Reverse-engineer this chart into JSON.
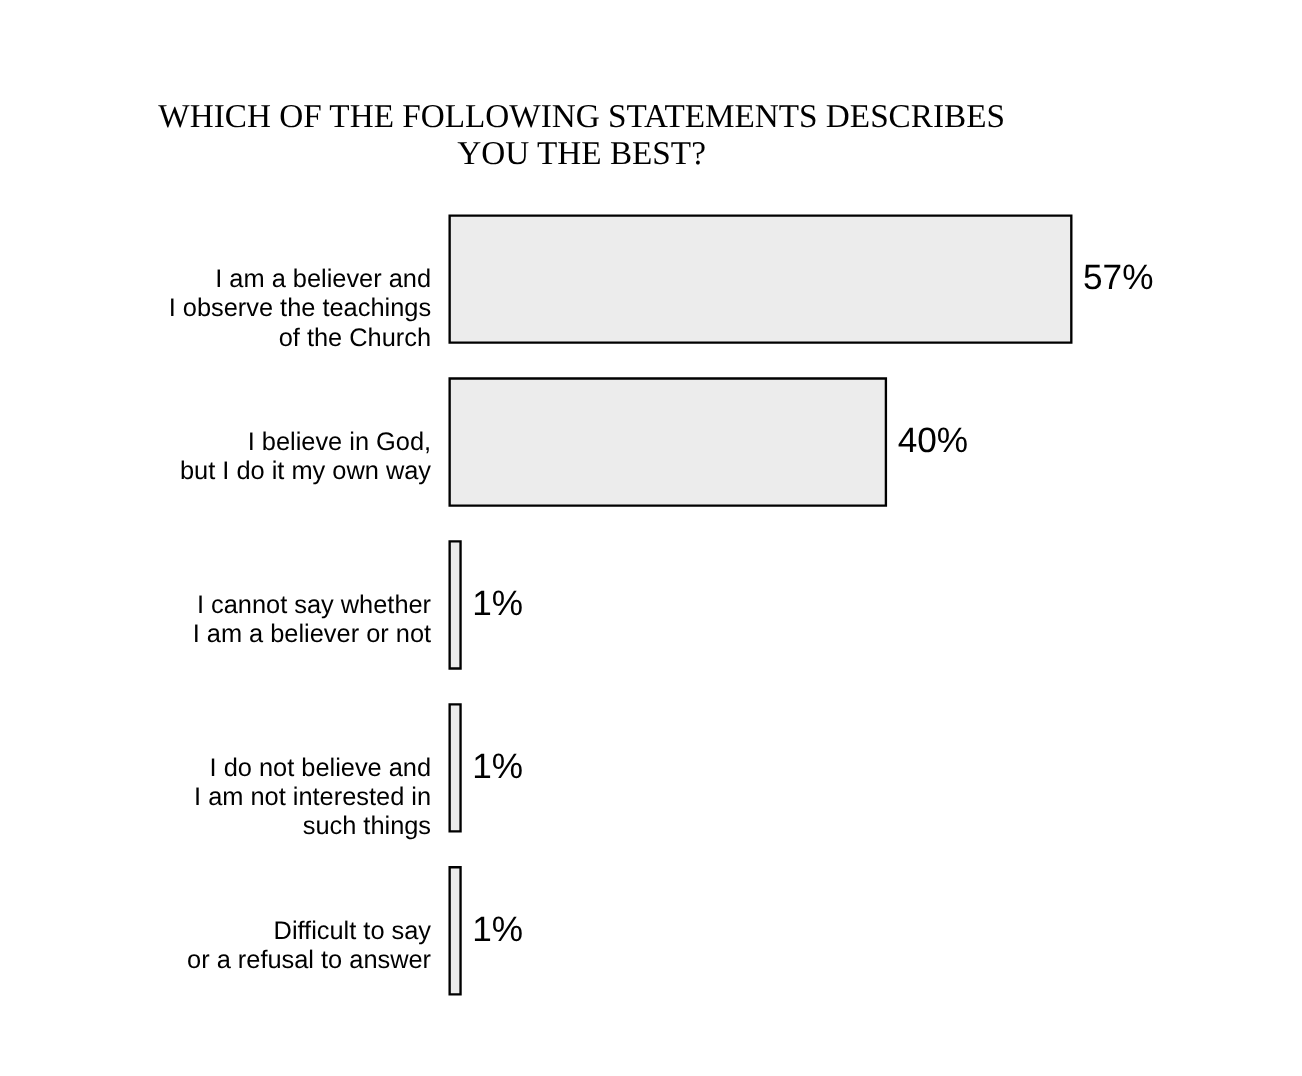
{
  "chart_data": {
    "type": "bar",
    "orientation": "horizontal",
    "title": [
      "WHICH OF THE FOLLOWING STATEMENTS DESCRIBES",
      "YOU THE BEST?"
    ],
    "categories": [
      "I am a believer and\nI observe the teachings\nof the Church",
      "I believe in God,\nbut I do it my own way",
      "I cannot say whether\nI am a believer or not",
      "I do not believe and\nI am not interested in\nsuch things",
      "Difficult to say\nor a refusal to answer"
    ],
    "values": [
      57,
      40,
      1,
      1,
      1
    ],
    "value_labels": [
      "57%",
      "40%",
      "1%",
      "1%",
      "1%"
    ],
    "color": "#ececec",
    "tick_labels": "y"
  }
}
